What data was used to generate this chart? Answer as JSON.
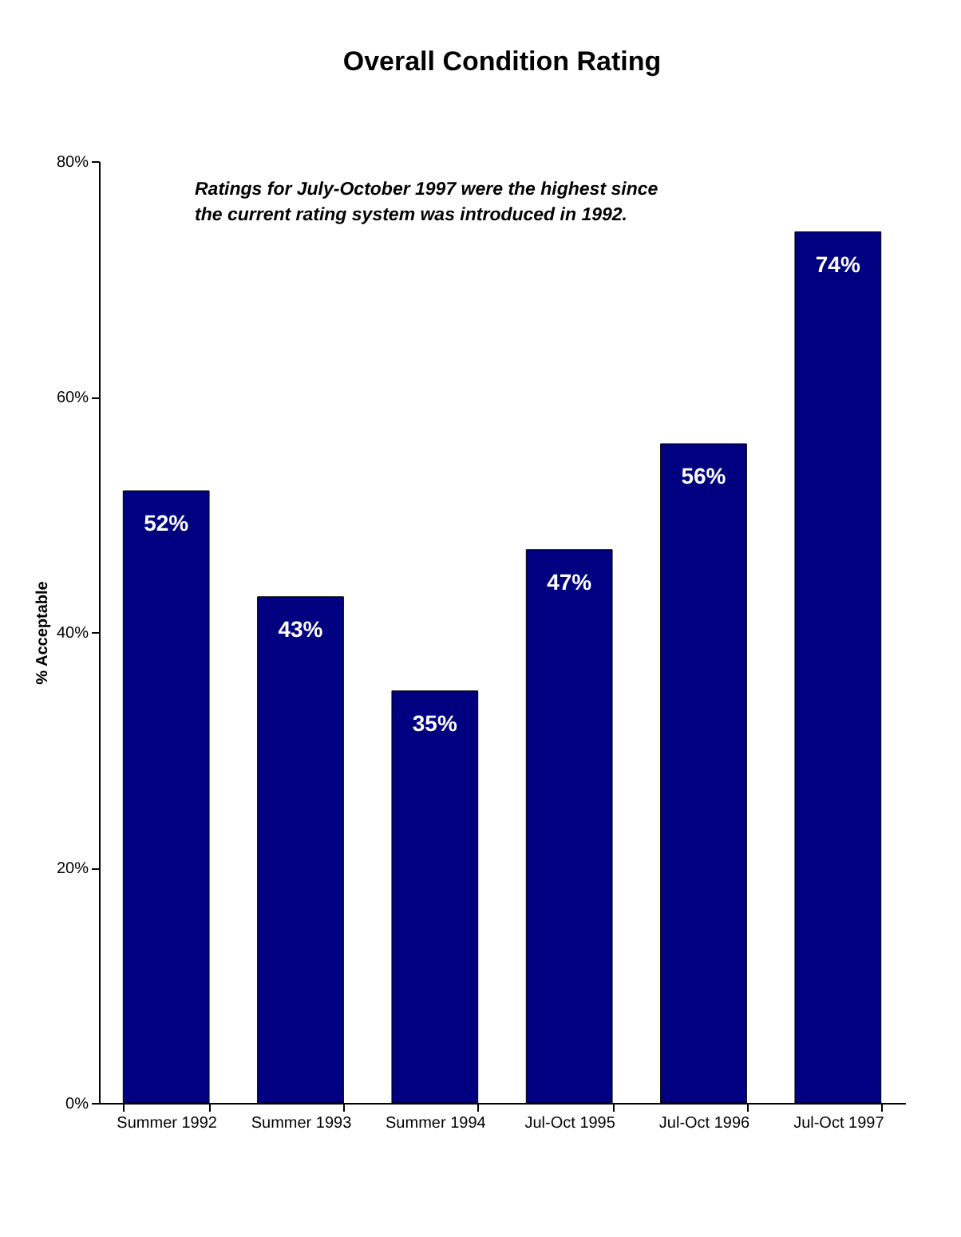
{
  "chart_data": {
    "type": "bar",
    "title": "Overall Condition Rating",
    "ylabel": "% Acceptable",
    "categories": [
      "Summer 1992",
      "Summer 1993",
      "Summer 1994",
      "Jul-Oct 1995",
      "Jul-Oct 1996",
      "Jul-Oct 1997"
    ],
    "values": [
      52,
      43,
      35,
      47,
      56,
      74
    ],
    "color": "#000080",
    "value_labels": [
      "52%",
      "43%",
      "35%",
      "47%",
      "56%",
      "74%"
    ],
    "ylim": [
      0,
      80
    ],
    "yticks": [
      {
        "value": 0,
        "label": "0%"
      },
      {
        "value": 20,
        "label": "20%"
      },
      {
        "value": 40,
        "label": "40%"
      },
      {
        "value": 60,
        "label": "60%"
      },
      {
        "value": 80,
        "label": "80%"
      }
    ],
    "annotations": [
      "Ratings for July-October 1997 were the highest since the current rating system was introduced in  1992."
    ],
    "grid": false
  }
}
